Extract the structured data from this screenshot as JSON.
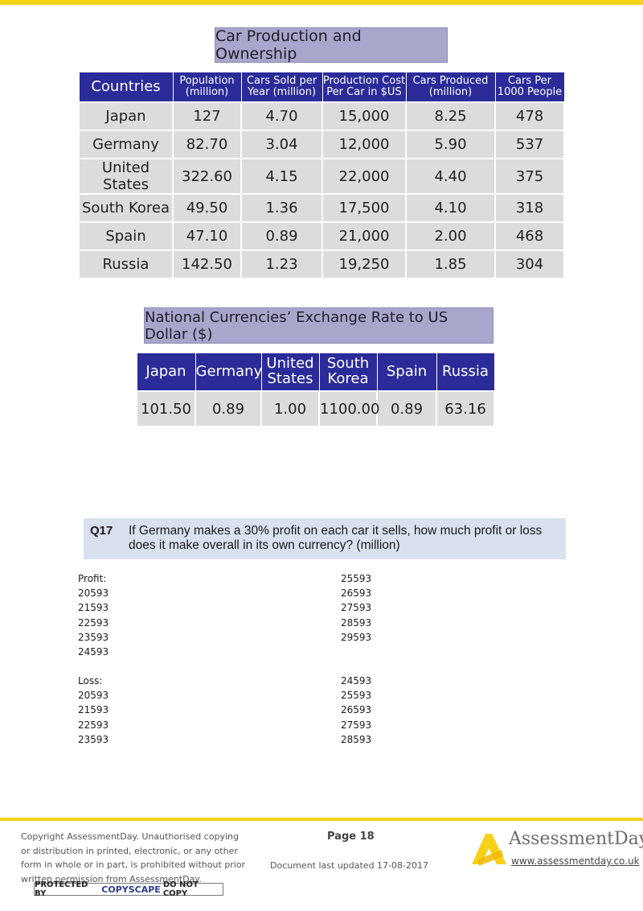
{
  "table1": {
    "title": "Car Production and Ownership",
    "headers": [
      [
        "Countries"
      ],
      [
        "Population",
        "(million)"
      ],
      [
        "Cars Sold per",
        "Year (million)"
      ],
      [
        "Production Cost",
        "Per Car in $US"
      ],
      [
        "Cars Produced",
        "(million)"
      ],
      [
        "Cars Per",
        "1000 People"
      ]
    ],
    "rows": [
      [
        "Japan",
        "127",
        "4.70",
        "15,000",
        "8.25",
        "478"
      ],
      [
        "Germany",
        "82.70",
        "3.04",
        "12,000",
        "5.90",
        "537"
      ],
      [
        "United States",
        "322.60",
        "4.15",
        "22,000",
        "4.40",
        "375"
      ],
      [
        "South Korea",
        "49.50",
        "1.36",
        "17,500",
        "4.10",
        "318"
      ],
      [
        "Spain",
        "47.10",
        "0.89",
        "21,000",
        "2.00",
        "468"
      ],
      [
        "Russia",
        "142.50",
        "1.23",
        "19,250",
        "1.85",
        "304"
      ]
    ]
  },
  "table2": {
    "title": "National Currencies’ Exchange Rate to US Dollar ($)",
    "headers": [
      [
        "Japan"
      ],
      [
        "Germany"
      ],
      [
        "United",
        "States"
      ],
      [
        "South",
        "Korea"
      ],
      [
        "Spain"
      ],
      [
        "Russia"
      ]
    ],
    "values": [
      "101.50",
      "0.89",
      "1.00",
      "1100.00",
      "0.89",
      "63.16"
    ]
  },
  "question": {
    "number": "Q17",
    "text": "If Germany makes a 30% profit on each car it sells, how much profit or loss does it make overall in its own currency? (million)"
  },
  "options": {
    "profit_left": [
      "Profit:",
      "20593",
      "21593",
      "22593",
      "23593",
      "24593"
    ],
    "profit_right": [
      "25593",
      "26593",
      "27593",
      "28593",
      "29593"
    ],
    "loss_left": [
      "Loss:",
      "20593",
      "21593",
      "22593",
      "23593"
    ],
    "loss_right": [
      "24593",
      "25593",
      "26593",
      "27593",
      "28593"
    ]
  },
  "footer": {
    "copyright": "Copyright AssessmentDay. Unauthorised copying or distribution in printed, electronic, or any other form in whole or in part, is prohibited without prior written permission from AssessmentDay.",
    "copyscape_pre": "PROTECTED BY",
    "copyscape_brand": "COPYSCAPE",
    "copyscape_post": "DO NOT COPY",
    "page": "Page 18",
    "updated": "Document last updated 17-08-2017",
    "logo_text": "AssessmentDay",
    "url": "www.assessmentday.co.uk",
    "colors": {
      "accent": "#f7d117",
      "header_blue": "#2b2b9a",
      "title_lilac": "#a9a6cc",
      "question_bg": "#d9e1ef"
    }
  }
}
